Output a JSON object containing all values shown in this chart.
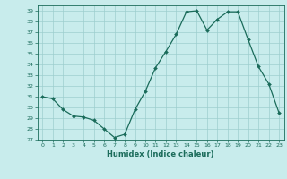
{
  "x": [
    0,
    1,
    2,
    3,
    4,
    5,
    6,
    7,
    8,
    9,
    10,
    11,
    12,
    13,
    14,
    15,
    16,
    17,
    18,
    19,
    20,
    21,
    22,
    23
  ],
  "y": [
    31,
    30.8,
    29.8,
    29.2,
    29.1,
    28.8,
    28.0,
    27.2,
    27.5,
    29.8,
    31.5,
    33.7,
    35.2,
    36.8,
    38.9,
    39.0,
    37.2,
    38.2,
    38.9,
    38.9,
    36.3,
    33.8,
    32.2,
    29.5
  ],
  "xlabel": "Humidex (Indice chaleur)",
  "ylim": [
    27,
    39.5
  ],
  "xlim": [
    -0.5,
    23.5
  ],
  "yticks": [
    27,
    28,
    29,
    30,
    31,
    32,
    33,
    34,
    35,
    36,
    37,
    38,
    39
  ],
  "xticks": [
    0,
    1,
    2,
    3,
    4,
    5,
    6,
    7,
    8,
    9,
    10,
    11,
    12,
    13,
    14,
    15,
    16,
    17,
    18,
    19,
    20,
    21,
    22,
    23
  ],
  "line_color": "#1a6b5a",
  "marker_color": "#1a6b5a",
  "bg_color": "#c8ecec",
  "grid_color": "#9dcece",
  "tick_label_color": "#1a6b5a",
  "xlabel_color": "#1a6b5a",
  "axis_color": "#1a6b5a"
}
